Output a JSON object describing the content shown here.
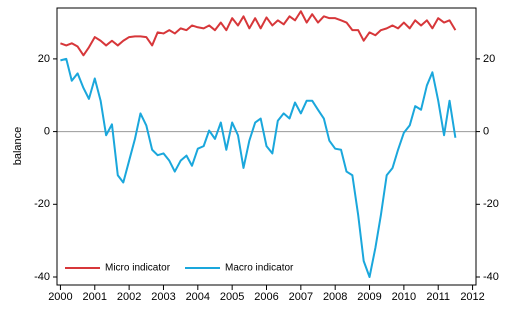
{
  "chart_data": {
    "type": "line",
    "y_label": "balance",
    "xlim": [
      1999.9,
      2012.1
    ],
    "xticks": [
      2000,
      2001,
      2002,
      2003,
      2004,
      2005,
      2006,
      2007,
      2008,
      2009,
      2010,
      2011,
      2012
    ],
    "ylim": [
      -42.2,
      34
    ],
    "yticks": [
      -40,
      -20,
      0,
      20
    ],
    "y2lim": [
      -42.2,
      34
    ],
    "y2ticks": [
      -40,
      -20,
      0,
      20
    ],
    "reference_line": 0,
    "legend": "lower left",
    "x": [
      2000,
      2000.17,
      2000.33,
      2000.5,
      2000.67,
      2000.83,
      2001,
      2001.17,
      2001.33,
      2001.5,
      2001.67,
      2001.83,
      2002,
      2002.17,
      2002.33,
      2002.5,
      2002.67,
      2002.83,
      2003,
      2003.17,
      2003.33,
      2003.5,
      2003.67,
      2003.83,
      2004,
      2004.17,
      2004.33,
      2004.5,
      2004.67,
      2004.83,
      2005,
      2005.17,
      2005.33,
      2005.5,
      2005.67,
      2005.83,
      2006,
      2006.17,
      2006.33,
      2006.5,
      2006.67,
      2006.83,
      2007,
      2007.17,
      2007.33,
      2007.5,
      2007.67,
      2007.83,
      2008,
      2008.17,
      2008.33,
      2008.5,
      2008.67,
      2008.83,
      2009,
      2009.17,
      2009.33,
      2009.5,
      2009.67,
      2009.83,
      2010,
      2010.17,
      2010.33,
      2010.5,
      2010.67,
      2010.83,
      2011,
      2011.17,
      2011.33,
      2011.5
    ],
    "series": [
      {
        "name": "Micro indicator",
        "color": "#d7373a",
        "values": [
          24.3,
          23.7,
          24.3,
          23.4,
          21,
          23.2,
          26,
          25,
          23.7,
          25,
          23.7,
          25,
          26,
          26.2,
          26.2,
          26,
          23.7,
          27.3,
          27,
          27.9,
          27,
          28.4,
          27.9,
          29.2,
          28.7,
          28.4,
          29.2,
          27.9,
          30,
          27.9,
          31.2,
          29.2,
          31.7,
          28.4,
          31.2,
          28.4,
          31.4,
          29.2,
          30.6,
          29.5,
          31.7,
          30.6,
          33.1,
          30,
          32.3,
          30,
          31.7,
          31.2,
          31.2,
          30.6,
          30,
          27.9,
          27.9,
          25,
          27.3,
          26.5,
          27.9,
          28.4,
          29.2,
          28.4,
          30,
          28.4,
          30.6,
          29.2,
          30.6,
          28.4,
          31.2,
          30,
          30.6,
          27.9
        ]
      },
      {
        "name": "Macro indicator",
        "color": "#1aa7dc",
        "values": [
          19.6,
          20,
          14,
          16,
          12,
          9,
          14.6,
          8.5,
          -1,
          2,
          -12,
          -14,
          -8,
          -2,
          5,
          1.7,
          -5,
          -6.5,
          -6,
          -8,
          -11,
          -8,
          -6.6,
          -9.4,
          -4.7,
          -4,
          0.3,
          -2,
          2.5,
          -5,
          2.5,
          -1,
          -10,
          -2.5,
          2.5,
          3.6,
          -4,
          -6,
          3,
          5,
          3.6,
          8,
          5,
          8.5,
          8.5,
          6,
          3.6,
          -2.5,
          -4.7,
          -5,
          -11,
          -12,
          -23,
          -35.6,
          -40,
          -32,
          -23,
          -12,
          -10,
          -5,
          -0.3,
          1.7,
          7,
          6,
          12.7,
          16.3,
          8.5,
          -1,
          8.5,
          -1.7
        ]
      }
    ]
  }
}
